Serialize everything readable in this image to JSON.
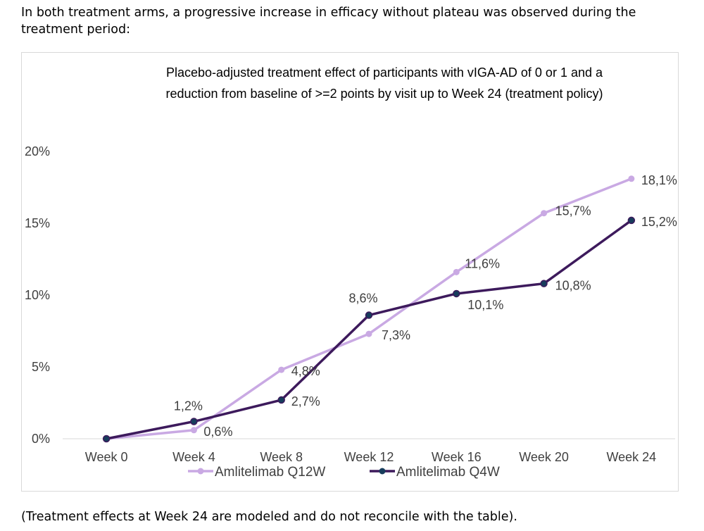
{
  "intro_text": "In both treatment arms, a progressive increase in efficacy without plateau was observed during the treatment period:",
  "footnote_text": "(Treatment effects at Week 24 are modeled and do not reconcile with the table).",
  "chart_data": {
    "type": "line",
    "title_lines": [
      "Placebo-adjusted treatment effect of participants with vIGA-AD of 0 or 1 and a",
      "reduction from baseline of >=2 points by visit up to Week 24 (treatment policy)"
    ],
    "categories": [
      "Week 0",
      "Week 4",
      "Week 8",
      "Week 12",
      "Week 16",
      "Week 20",
      "Week 24"
    ],
    "ylim": [
      0,
      20
    ],
    "yticks": [
      0,
      5,
      10,
      15,
      20
    ],
    "ytick_labels": [
      "0%",
      "5%",
      "10%",
      "15%",
      "20%"
    ],
    "xlabel": "",
    "ylabel": "",
    "grid": false,
    "legend_position": "bottom",
    "series": [
      {
        "name": "Amlitelimab Q12W",
        "color": "#c9a9e3",
        "values": [
          0,
          0.6,
          4.8,
          7.3,
          11.6,
          15.7,
          18.1
        ],
        "labels": [
          "",
          "0,6%",
          "4,8%",
          "7,3%",
          "11,6%",
          "15,7%",
          "18,1%"
        ]
      },
      {
        "name": "Amlitelimab Q4W",
        "color": "#3d1a5c",
        "marker_color": "#173d5c",
        "values": [
          0,
          1.2,
          2.7,
          8.6,
          10.1,
          10.8,
          15.2
        ],
        "labels": [
          "",
          "1,2%",
          "2,7%",
          "8,6%",
          "10,1%",
          "10,8%",
          "15,2%"
        ]
      }
    ]
  }
}
